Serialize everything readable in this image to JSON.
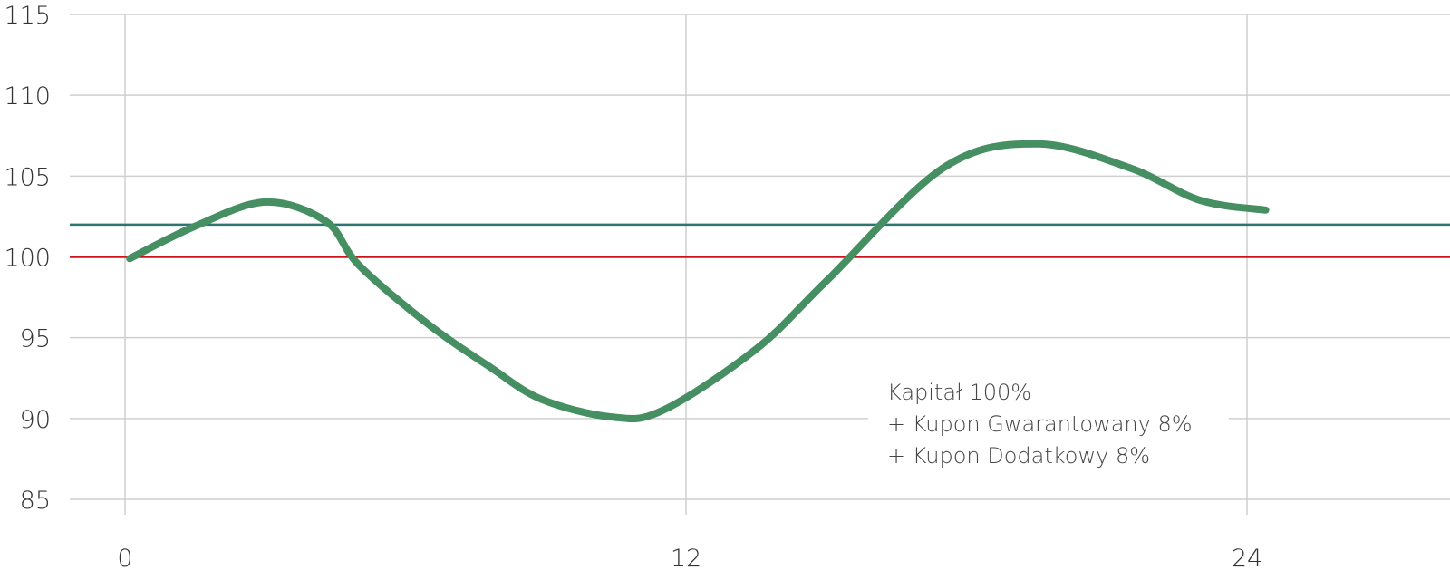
{
  "chart_data": {
    "type": "line",
    "title": "",
    "xlabel": "",
    "ylabel": "",
    "xlim": [
      -2,
      26
    ],
    "ylim": [
      85,
      115
    ],
    "x_ticks": [
      0,
      12,
      24
    ],
    "x_tick_labels": [
      "0",
      "12",
      "24"
    ],
    "y_ticks": [
      85,
      90,
      95,
      100,
      105,
      110,
      115
    ],
    "y_tick_labels": [
      "85",
      "90",
      "95",
      "100",
      "105",
      "110",
      "115"
    ],
    "grid": true,
    "colors": {
      "line": "#468f62",
      "level_100": "#d0121b",
      "level_102": "#2e7570",
      "grid": "#cfcfcf"
    },
    "series": [
      {
        "values": [
          [
            0.1,
            99.9
          ],
          [
            1.5,
            101.9
          ],
          [
            3.0,
            103.4
          ],
          [
            4.3,
            102.2
          ],
          [
            5.0,
            99.5
          ],
          [
            6.5,
            95.8
          ],
          [
            7.8,
            93.2
          ],
          [
            8.9,
            91.2
          ],
          [
            10.4,
            90.1
          ],
          [
            11.5,
            90.5
          ],
          [
            13.5,
            94.3
          ],
          [
            15.0,
            98.5
          ],
          [
            17.5,
            105.5
          ],
          [
            19.5,
            107.0
          ],
          [
            21.5,
            105.5
          ],
          [
            23.0,
            103.5
          ],
          [
            24.4,
            102.9
          ]
        ]
      }
    ],
    "reference_lines": [
      {
        "y": 102,
        "color": "#2e7570"
      },
      {
        "y": 100,
        "color": "#d0121b"
      }
    ],
    "annotation": [
      "Kapitał 100%",
      "+ Kupon Gwarantowany 8%",
      "+ Kupon Dodatkowy 8%"
    ]
  }
}
